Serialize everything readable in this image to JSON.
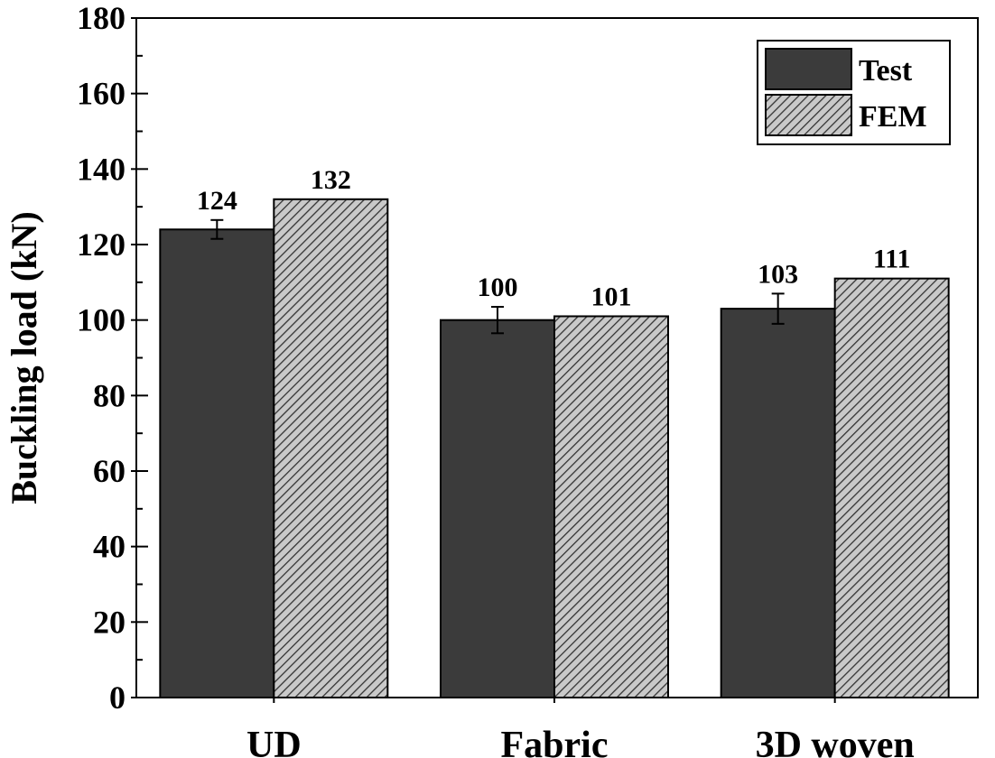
{
  "chart_data": {
    "type": "bar",
    "title": "",
    "xlabel": "",
    "ylabel": "Buckling load (kN)",
    "ylim": [
      0,
      180
    ],
    "yticks": [
      0,
      20,
      40,
      60,
      80,
      100,
      120,
      140,
      160,
      180
    ],
    "ytick_labels": [
      "0",
      "20",
      "40",
      "60",
      "80",
      "100",
      "120",
      "140",
      "160",
      "180"
    ],
    "categories": [
      "UD",
      "Fabric",
      "3D woven"
    ],
    "series": [
      {
        "name": "Test",
        "values": [
          124,
          100,
          103
        ],
        "errors": [
          2.5,
          3.5,
          4.0
        ],
        "labels": [
          "124",
          "100",
          "103"
        ],
        "fill": "#3b3b3b",
        "pattern": "solid"
      },
      {
        "name": "FEM",
        "values": [
          132,
          101,
          111
        ],
        "labels": [
          "132",
          "101",
          "111"
        ],
        "fill": "#bdbdbd",
        "pattern": "diagonal-hatch"
      }
    ],
    "legend": {
      "position": "top-right",
      "entries": [
        "Test",
        "FEM"
      ]
    },
    "grid": false
  }
}
